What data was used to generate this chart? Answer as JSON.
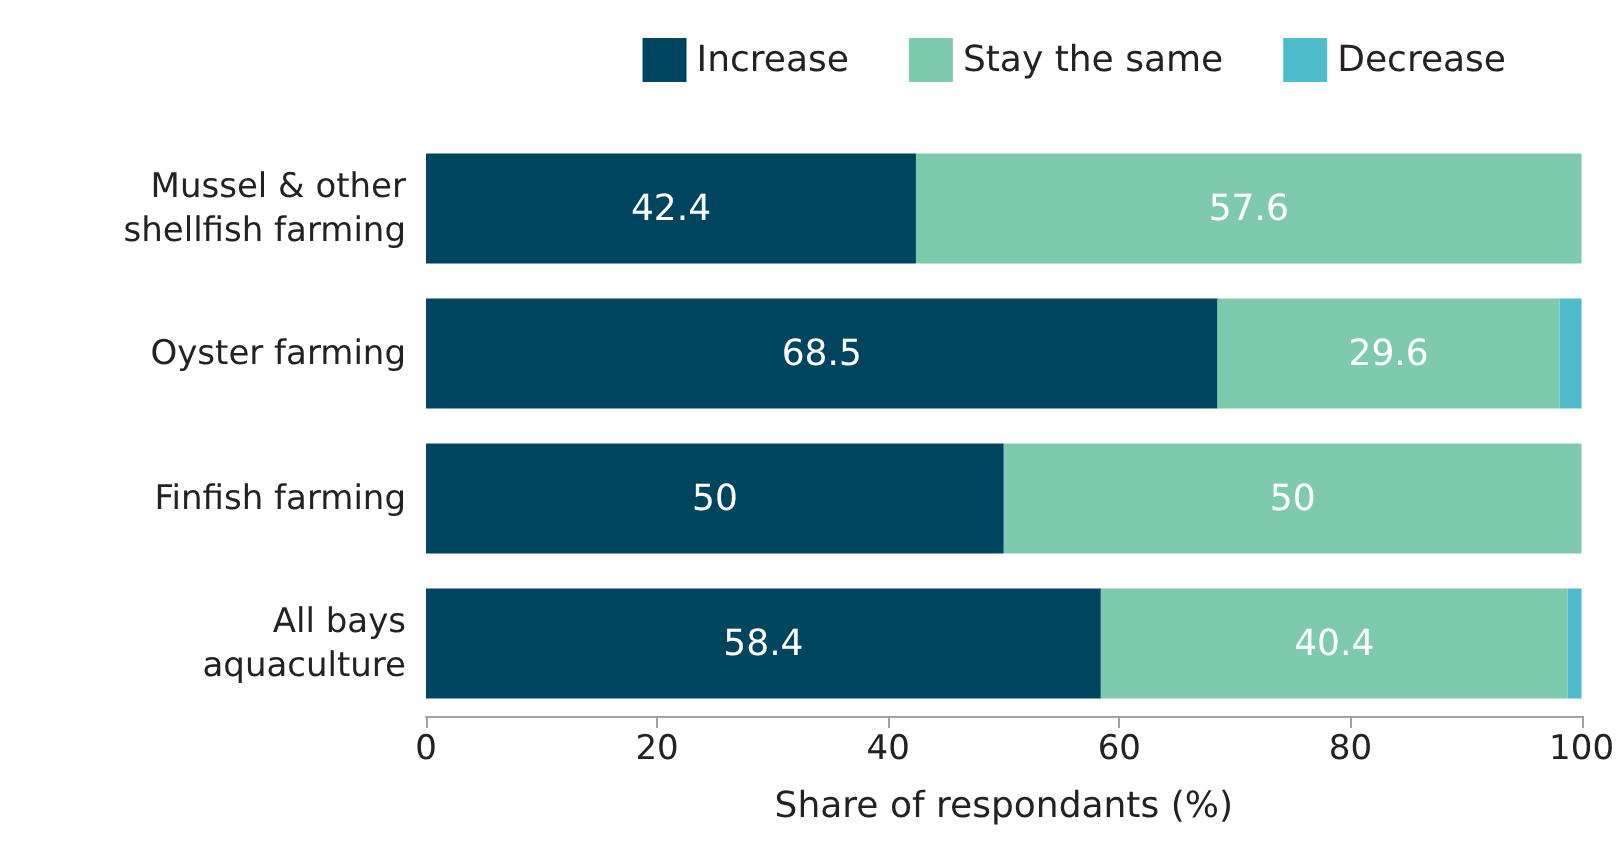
{
  "chart_data": {
    "type": "bar",
    "orientation": "horizontal",
    "stacked": true,
    "xlabel": "Share of respondants (%)",
    "categories": [
      "Mussel & other shellfish farming",
      "Oyster farming",
      "Finfish farming",
      "All bays aquaculture"
    ],
    "series": [
      {
        "name": "Increase",
        "color": "#00455f",
        "values": [
          42.4,
          68.5,
          50,
          58.4
        ],
        "value_labels": [
          "42.4",
          "68.5",
          "50",
          "58.4"
        ]
      },
      {
        "name": "Stay the same",
        "color": "#7fcaae",
        "values": [
          57.6,
          29.6,
          50,
          40.4
        ],
        "value_labels": [
          "57.6",
          "29.6",
          "50",
          "40.4"
        ]
      },
      {
        "name": "Decrease",
        "color": "#4fbcce",
        "values": [
          0,
          1.9,
          0,
          1.2
        ],
        "value_labels": [
          null,
          null,
          null,
          null
        ]
      }
    ],
    "xlim": [
      0,
      100
    ],
    "xticks": [
      0,
      20,
      40,
      60,
      80,
      100
    ],
    "grid": false,
    "legend": "top right"
  }
}
